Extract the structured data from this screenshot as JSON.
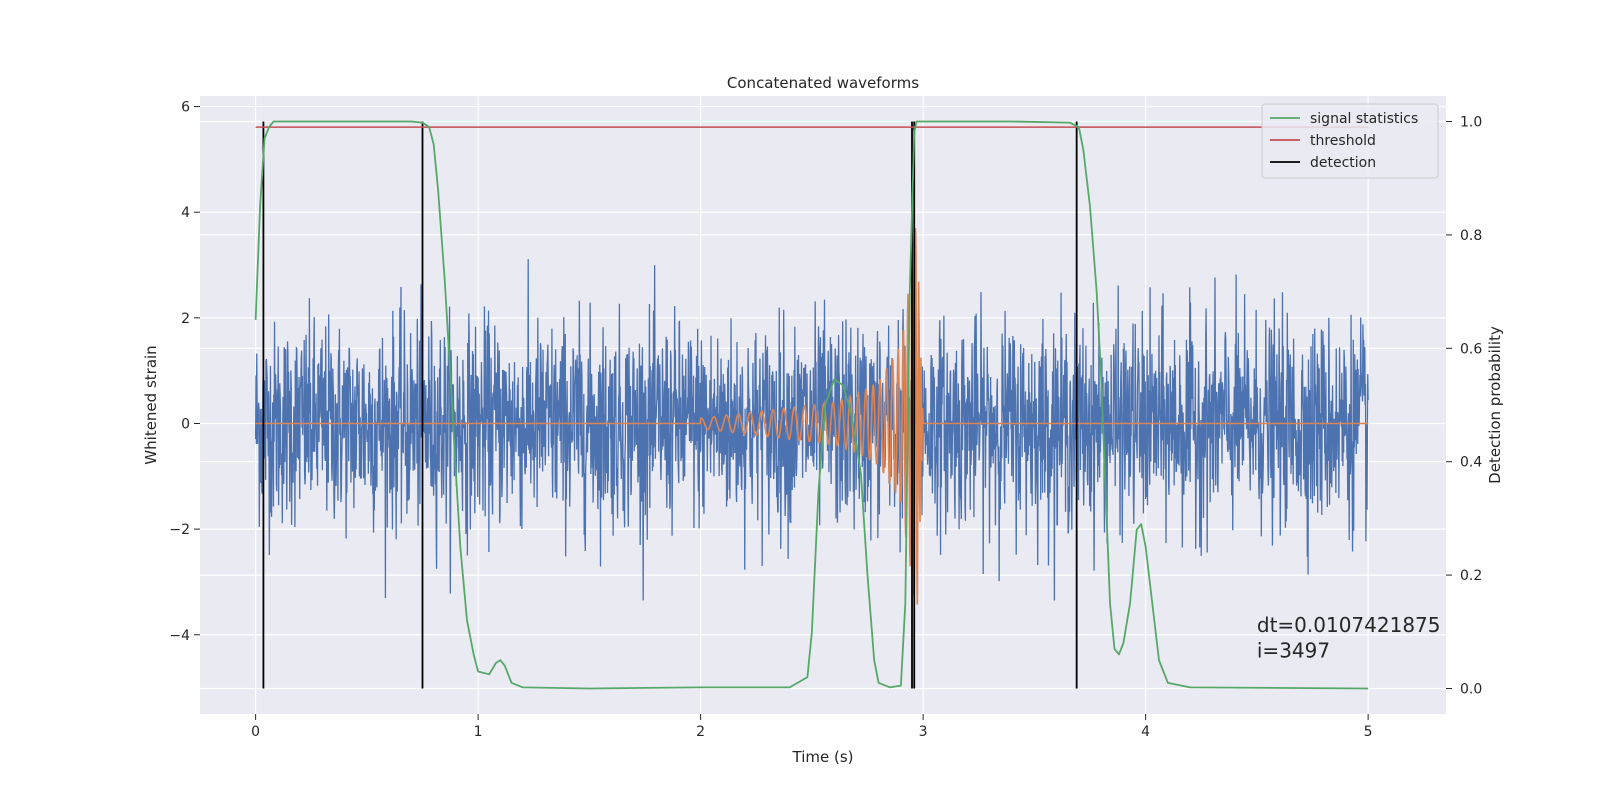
{
  "chart_data": {
    "type": "line",
    "title": "Concatenated waveforms",
    "xlabel": "Time (s)",
    "ylabel": "Whitened strain",
    "y2label": "Detection probability",
    "xlim": [
      -0.25,
      5.35
    ],
    "ylim": [
      -5.5,
      6.2
    ],
    "y2lim": [
      -0.045,
      1.045
    ],
    "x_ticks": [
      0,
      1,
      2,
      3,
      4,
      5
    ],
    "x_tick_labels": [
      "0",
      "1",
      "2",
      "3",
      "4",
      "5"
    ],
    "y_ticks": [
      -4,
      -2,
      0,
      2,
      4,
      6
    ],
    "y_tick_labels": [
      "−4",
      "−2",
      "0",
      "2",
      "4",
      "6"
    ],
    "y2_ticks": [
      0.0,
      0.2,
      0.4,
      0.6,
      0.8,
      1.0
    ],
    "y2_tick_labels": [
      "0.0",
      "0.2",
      "0.4",
      "0.6",
      "0.8",
      "1.0"
    ],
    "grid": true,
    "legend_position": "top-right",
    "colors": {
      "strain": "#4c72b0",
      "waveform": "#dd8452",
      "signal_statistics": "#55a868",
      "threshold": "#c44e52",
      "detection": "#000000",
      "background": "#eaeaf2",
      "grid": "#ffffff"
    },
    "strain_noise": {
      "x_range": [
        0,
        5
      ],
      "approx_amplitude": 1.0,
      "peak_max": 4.05,
      "peak_min": -3.35
    },
    "injected_waveform": {
      "x": [
        0,
        2.0,
        2.2,
        2.4,
        2.6,
        2.7,
        2.8,
        2.9,
        2.95,
        2.97,
        3.0,
        5.0
      ],
      "amplitude_envelope": [
        0,
        0.1,
        0.2,
        0.3,
        0.4,
        0.55,
        0.8,
        1.5,
        3.0,
        4.0,
        0.05,
        0
      ]
    },
    "series": [
      {
        "name": "signal statistics",
        "x": [
          0,
          0.02,
          0.04,
          0.06,
          0.08,
          0.1,
          0.2,
          0.5,
          0.7,
          0.75,
          0.78,
          0.8,
          0.82,
          0.85,
          0.88,
          0.9,
          0.92,
          0.95,
          0.98,
          1.0,
          1.05,
          1.08,
          1.1,
          1.12,
          1.15,
          1.2,
          1.5,
          2.0,
          2.4,
          2.48,
          2.5,
          2.53,
          2.56,
          2.6,
          2.64,
          2.68,
          2.72,
          2.75,
          2.78,
          2.8,
          2.85,
          2.9,
          2.92,
          2.94,
          2.96,
          2.97,
          2.98,
          3.0,
          3.1,
          3.4,
          3.66,
          3.7,
          3.72,
          3.75,
          3.78,
          3.8,
          3.82,
          3.84,
          3.86,
          3.88,
          3.9,
          3.93,
          3.96,
          3.98,
          4.0,
          4.03,
          4.06,
          4.1,
          4.2,
          5.0
        ],
        "y": [
          0.65,
          0.85,
          0.97,
          0.99,
          1.0,
          1.0,
          1.0,
          1.0,
          1.0,
          0.998,
          0.99,
          0.96,
          0.88,
          0.72,
          0.52,
          0.38,
          0.25,
          0.12,
          0.06,
          0.03,
          0.025,
          0.045,
          0.05,
          0.04,
          0.01,
          0.002,
          0.0,
          0.002,
          0.002,
          0.02,
          0.1,
          0.35,
          0.5,
          0.545,
          0.535,
          0.48,
          0.38,
          0.2,
          0.05,
          0.01,
          0.002,
          0.005,
          0.15,
          0.7,
          0.98,
          1.0,
          1.0,
          1.0,
          1.0,
          1.0,
          0.998,
          0.99,
          0.95,
          0.85,
          0.7,
          0.55,
          0.35,
          0.15,
          0.07,
          0.06,
          0.08,
          0.15,
          0.28,
          0.29,
          0.25,
          0.15,
          0.05,
          0.01,
          0.002,
          0.0
        ]
      },
      {
        "name": "threshold",
        "x": [
          0,
          5
        ],
        "y": [
          0.99,
          0.99
        ]
      },
      {
        "name": "detection",
        "x": [
          0.035,
          0.75,
          2.95,
          2.96,
          3.69
        ],
        "y_range": [
          0.0,
          1.0
        ]
      }
    ],
    "annotations": [
      {
        "text": "dt=0.0107421875",
        "x": 4.5,
        "y2": 0.1
      },
      {
        "text": " i=3497",
        "x": 4.5,
        "y2": 0.055
      }
    ]
  }
}
